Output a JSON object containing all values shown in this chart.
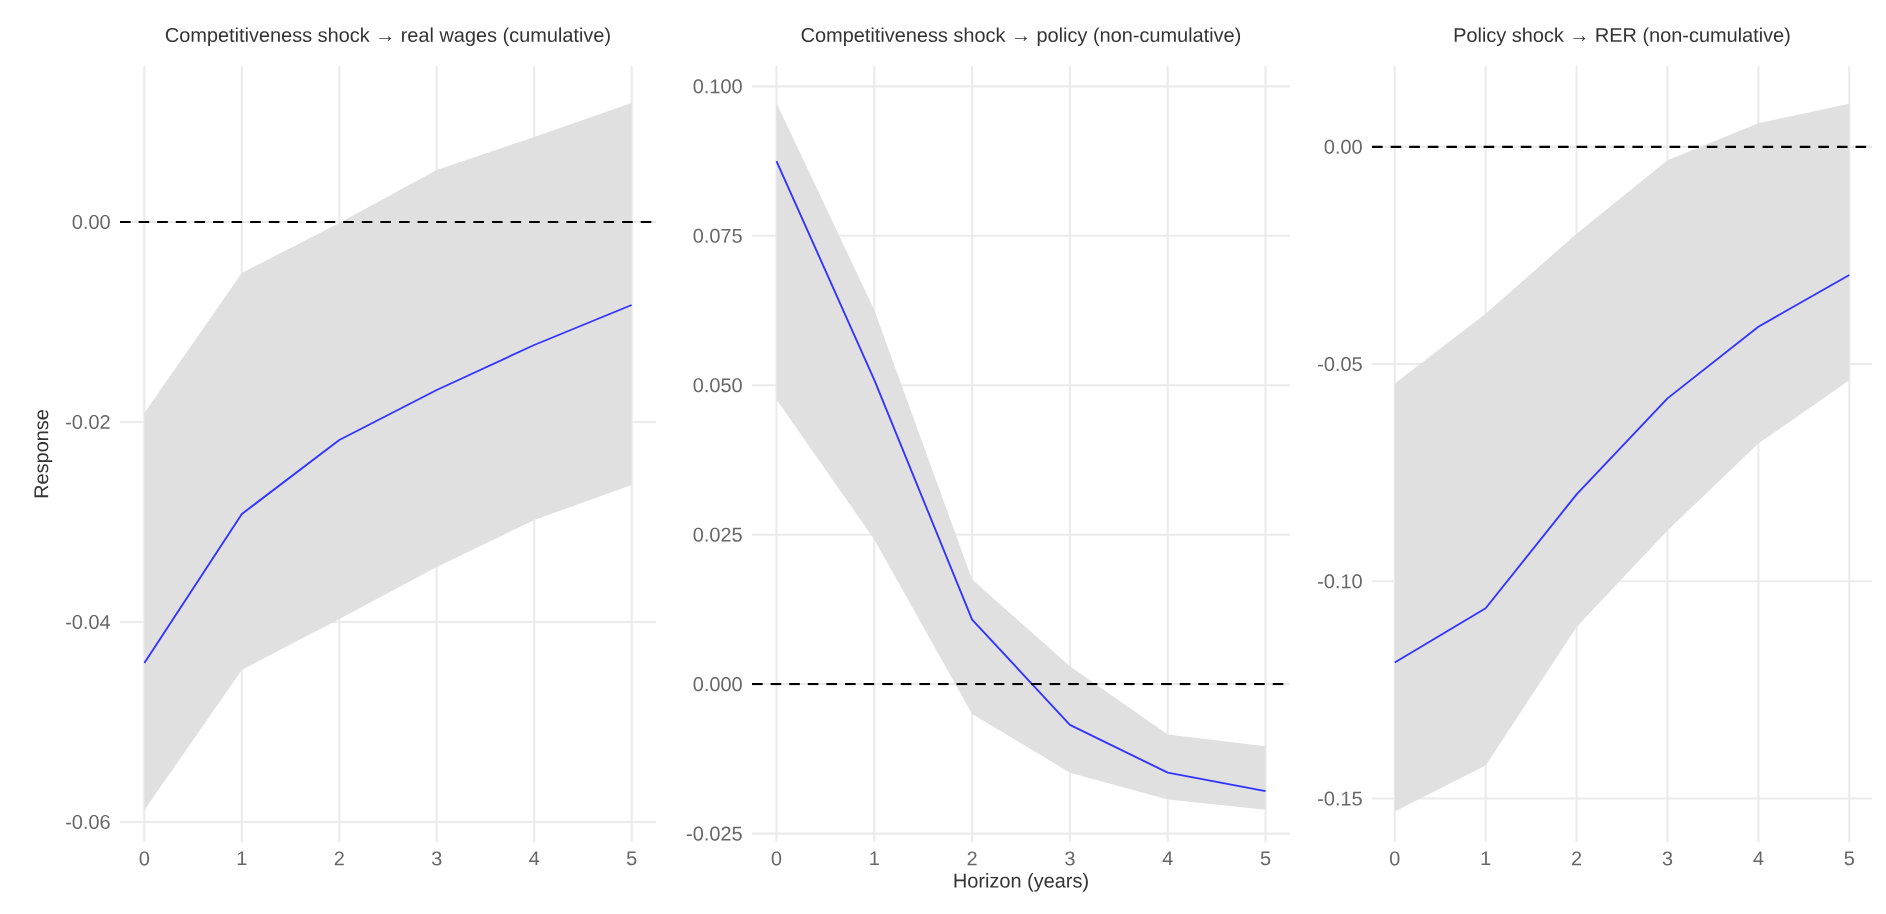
{
  "chart_data": [
    {
      "type": "line",
      "title": "Competitiveness shock → real wages (cumulative)",
      "ylabel": "Response",
      "x": [
        0,
        1,
        2,
        3,
        4,
        5
      ],
      "xlim": [
        -0.25,
        5.25
      ],
      "xticks": [
        0,
        1,
        2,
        3,
        4,
        5
      ],
      "ylim": [
        -0.062,
        0.0156
      ],
      "yticks": [
        {
          "value": -0.06,
          "label": "-0.06"
        },
        {
          "value": -0.04,
          "label": "-0.04"
        },
        {
          "value": -0.02,
          "label": "-0.02"
        },
        {
          "value": 0,
          "label": "0.00"
        }
      ],
      "grid": true,
      "series": [
        {
          "color": "#3333ff",
          "values": [
            -0.0441,
            -0.0292,
            -0.0218,
            -0.0168,
            -0.0123,
            -0.0083
          ],
          "lower": [
            -0.0588,
            -0.0448,
            -0.0397,
            -0.0345,
            -0.0298,
            -0.0263
          ],
          "upper": [
            -0.0191,
            -0.0051,
            -0.0001,
            0.0052,
            0.0085,
            0.0119
          ]
        }
      ],
      "ref_lines": [
        {
          "axis": "y",
          "value": 0,
          "color": "#000000",
          "line_style": "dashed"
        }
      ]
    },
    {
      "type": "line",
      "title": "Competitiveness shock → policy (non-cumulative)",
      "xlabel": "Horizon (years)",
      "x": [
        0,
        1,
        2,
        3,
        4,
        5
      ],
      "xlim": [
        -0.25,
        5.25
      ],
      "xticks": [
        0,
        1,
        2,
        3,
        4,
        5
      ],
      "ylim": [
        -0.0264,
        0.1034
      ],
      "yticks": [
        {
          "value": -0.025,
          "label": "-0.025"
        },
        {
          "value": 0,
          "label": "0.000"
        },
        {
          "value": 0.025,
          "label": "0.025"
        },
        {
          "value": 0.05,
          "label": "0.050"
        },
        {
          "value": 0.075,
          "label": "0.075"
        },
        {
          "value": 0.1,
          "label": "0.100"
        }
      ],
      "grid": true,
      "series": [
        {
          "color": "#3333ff",
          "values": [
            0.0875,
            0.0509,
            0.0108,
            -0.0068,
            -0.0148,
            -0.0179
          ],
          "lower": [
            0.0476,
            0.0242,
            -0.005,
            -0.0148,
            -0.0193,
            -0.021
          ],
          "upper": [
            0.0972,
            0.0626,
            0.0175,
            0.003,
            -0.0084,
            -0.0104
          ]
        }
      ],
      "ref_lines": [
        {
          "axis": "y",
          "value": 0,
          "color": "#000000",
          "line_style": "dashed"
        }
      ]
    },
    {
      "type": "line",
      "title": "Policy shock → RER (non-cumulative)",
      "x": [
        0,
        1,
        2,
        3,
        4,
        5
      ],
      "xlim": [
        -0.25,
        5.25
      ],
      "xticks": [
        0,
        1,
        2,
        3,
        4,
        5
      ],
      "ylim": [
        -0.16,
        0.0186
      ],
      "yticks": [
        {
          "value": -0.15,
          "label": "-0.15"
        },
        {
          "value": -0.1,
          "label": "-0.10"
        },
        {
          "value": -0.05,
          "label": "-0.05"
        },
        {
          "value": 0,
          "label": "0.00"
        }
      ],
      "grid": true,
      "series": [
        {
          "color": "#3333ff",
          "values": [
            -0.1187,
            -0.1062,
            -0.08,
            -0.0579,
            -0.0414,
            -0.0295
          ],
          "lower": [
            -0.153,
            -0.1424,
            -0.1105,
            -0.0883,
            -0.0683,
            -0.0537
          ],
          "upper": [
            -0.0545,
            -0.0384,
            -0.02,
            -0.0031,
            0.0054,
            0.0099
          ]
        }
      ],
      "ref_lines": [
        {
          "axis": "y",
          "value": 0,
          "color": "#000000",
          "line_style": "dashed"
        }
      ]
    }
  ]
}
